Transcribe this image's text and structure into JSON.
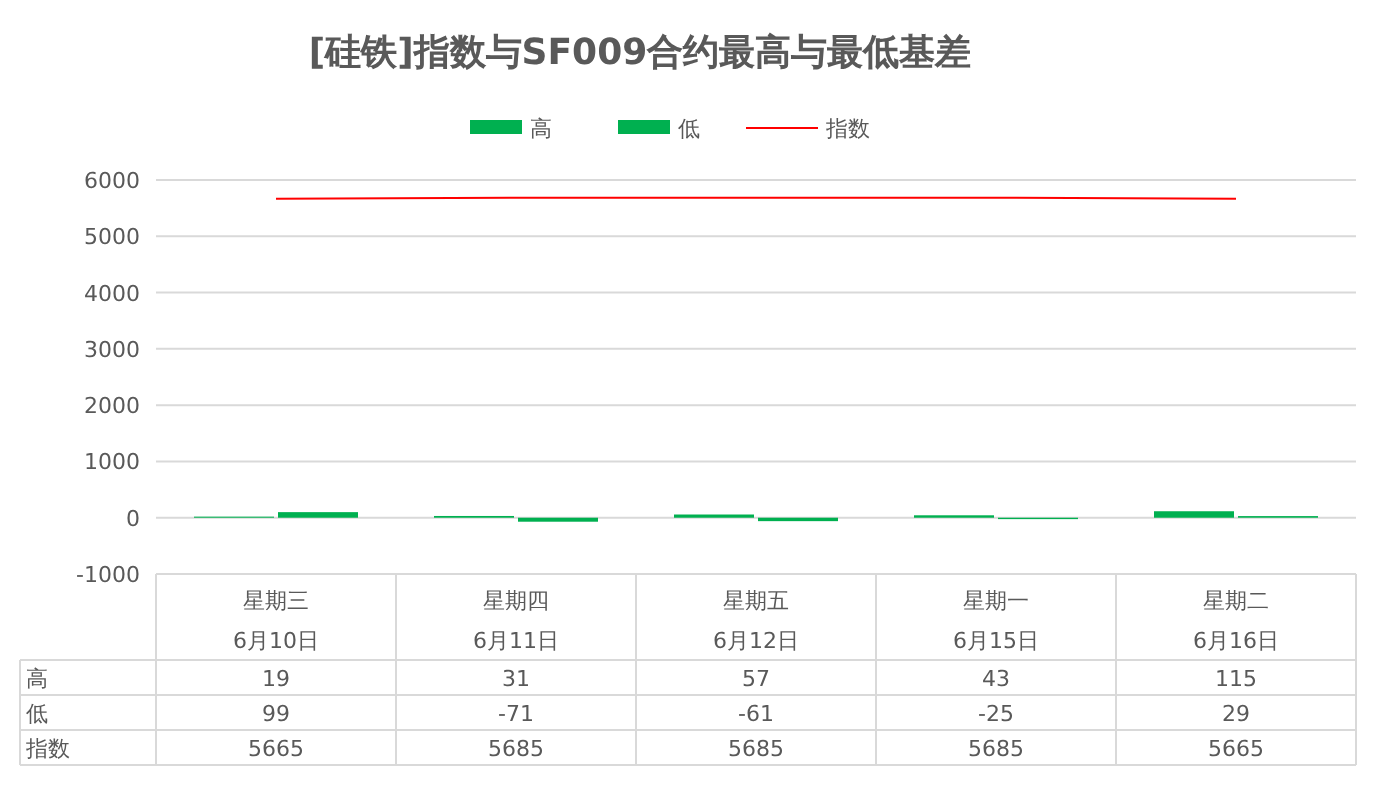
{
  "chart_data": {
    "type": "bar",
    "title": "[硅铁]指数与SF009合约最高与最低基差",
    "categories": [
      "星期三\n6月10日",
      "星期四\n6月11日",
      "星期五\n6月12日",
      "星期一\n6月15日",
      "星期二\n6月16日"
    ],
    "series": [
      {
        "name": "高",
        "color": "#00b050",
        "values": [
          19,
          31,
          57,
          43,
          115
        ]
      },
      {
        "name": "低",
        "color": "#00b050",
        "values": [
          99,
          -71,
          -61,
          -25,
          29
        ]
      },
      {
        "name": "指数",
        "type": "line",
        "color": "#ff0000",
        "values": [
          5665,
          5685,
          5685,
          5685,
          5665
        ]
      }
    ],
    "ylim": [
      -1000,
      6000
    ],
    "yticks": [
      -1000,
      0,
      1000,
      2000,
      3000,
      4000,
      5000,
      6000
    ],
    "grid": "y",
    "legend": "top",
    "data_labels": true
  }
}
